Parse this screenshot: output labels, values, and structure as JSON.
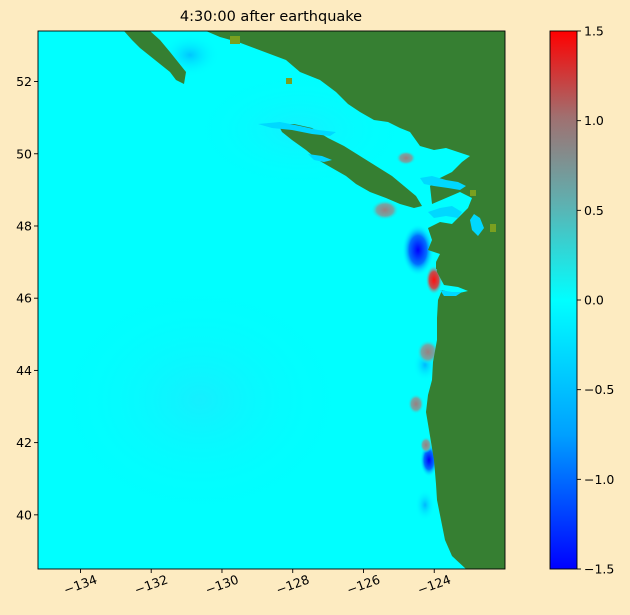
{
  "chart_data": {
    "type": "heatmap",
    "title": "4:30:00 after earthquake",
    "xlabel": "",
    "ylabel": "",
    "xlim": [
      -135.2,
      -122.0
    ],
    "ylim": [
      38.5,
      53.4
    ],
    "x_ticks": [
      -134,
      -132,
      -130,
      -128,
      -126,
      -124
    ],
    "x_tick_labels": [
      "−134",
      "−132",
      "−130",
      "−128",
      "−126",
      "−124"
    ],
    "y_ticks": [
      40,
      42,
      44,
      46,
      48,
      50,
      52
    ],
    "y_tick_labels": [
      "40",
      "42",
      "44",
      "46",
      "48",
      "50",
      "52"
    ],
    "colorbar": {
      "range": [
        -1.5,
        1.5
      ],
      "ticks": [
        -1.5,
        -1.0,
        -0.5,
        0.0,
        0.5,
        1.0,
        1.5
      ],
      "tick_labels": [
        "−1.5",
        "−1.0",
        "−0.5",
        "0.0",
        "0.5",
        "1.0",
        "1.5"
      ],
      "colors": [
        "#0000ff",
        "#00a0ff",
        "#00ffff",
        "#5fb0b0",
        "#a07070",
        "#ff0000"
      ]
    },
    "colors": {
      "background": "#fdebc1",
      "ocean": "#00ffff",
      "land": "#367f32"
    },
    "grid": false
  }
}
